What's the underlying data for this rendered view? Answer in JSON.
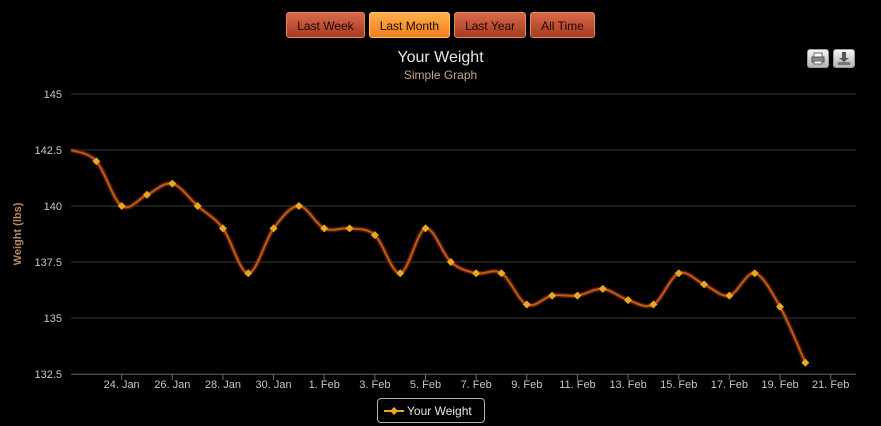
{
  "range_buttons": [
    {
      "label": "Last Week",
      "active": false
    },
    {
      "label": "Last Month",
      "active": true
    },
    {
      "label": "Last Year",
      "active": false
    },
    {
      "label": "All Time",
      "active": false
    }
  ],
  "colors": {
    "series": "#e8a820",
    "line": "#c05a1a",
    "grid": "#3a3a3a",
    "axis_text": "#c6c6c6"
  },
  "chart_data": {
    "type": "line",
    "title": "Your Weight",
    "subtitle": "Simple Graph",
    "ylabel": "Weight (lbs)",
    "xlabel": "",
    "ylim": [
      132.5,
      145
    ],
    "yticks": [
      "145",
      "142.5",
      "140",
      "137.5",
      "135",
      "132.5"
    ],
    "xlim": [
      "2013-01-22",
      "2013-02-22"
    ],
    "xticks": [
      "24. Jan",
      "26. Jan",
      "28. Jan",
      "30. Jan",
      "1. Feb",
      "3. Feb",
      "5. Feb",
      "7. Feb",
      "9. Feb",
      "11. Feb",
      "13. Feb",
      "15. Feb",
      "17. Feb",
      "19. Feb",
      "21. Feb"
    ],
    "grid": true,
    "legend_position": "bottom-center",
    "series": [
      {
        "name": "Your Weight",
        "x": [
          "2013-01-22",
          "2013-01-23",
          "2013-01-24",
          "2013-01-25",
          "2013-01-26",
          "2013-01-27",
          "2013-01-28",
          "2013-01-29",
          "2013-01-30",
          "2013-01-31",
          "2013-02-01",
          "2013-02-02",
          "2013-02-03",
          "2013-02-04",
          "2013-02-05",
          "2013-02-06",
          "2013-02-07",
          "2013-02-08",
          "2013-02-09",
          "2013-02-10",
          "2013-02-11",
          "2013-02-12",
          "2013-02-13",
          "2013-02-14",
          "2013-02-15",
          "2013-02-16",
          "2013-02-17",
          "2013-02-18",
          "2013-02-19",
          "2013-02-20",
          "2013-02-21"
        ],
        "values": [
          142.5,
          142.0,
          140.0,
          140.5,
          141.0,
          140.0,
          139.0,
          137.0,
          139.0,
          140.0,
          139.0,
          139.0,
          138.7,
          137.0,
          139.0,
          137.5,
          137.0,
          137.0,
          135.6,
          136.0,
          136.0,
          136.3,
          135.8,
          135.6,
          137.0,
          136.5,
          136.0,
          137.0,
          135.5,
          133.0,
          null
        ]
      }
    ]
  }
}
